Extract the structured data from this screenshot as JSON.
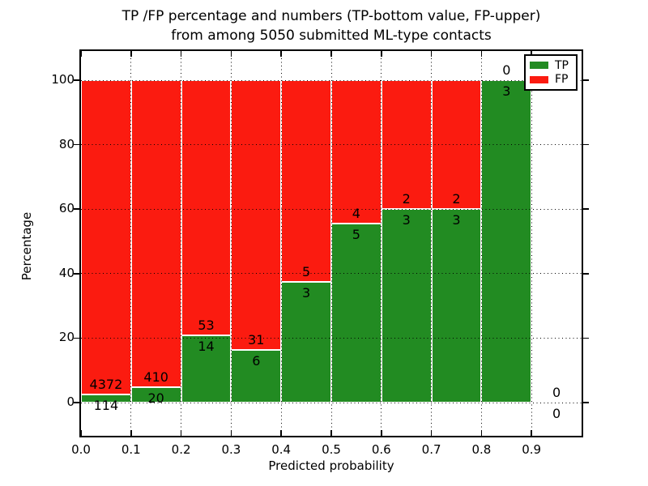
{
  "chart_data": {
    "type": "bar",
    "stacked": true,
    "title_line1": "TP /FP percentage and numbers (TP-bottom value, FP-upper)",
    "title_line2": "from among 5050 submitted ML-type contacts",
    "xlabel": "Predicted probability",
    "ylabel": "Percentage",
    "total_contacts": 5050,
    "bin_width": 0.1,
    "bin_starts": [
      0.0,
      0.1,
      0.2,
      0.3,
      0.4,
      0.5,
      0.6,
      0.7,
      0.8,
      0.9
    ],
    "series": [
      {
        "name": "TP",
        "color": "#228b22",
        "counts": [
          114,
          20,
          14,
          6,
          3,
          5,
          3,
          3,
          3,
          0
        ]
      },
      {
        "name": "FP",
        "color": "#fb1b10",
        "counts": [
          4372,
          410,
          53,
          31,
          5,
          4,
          2,
          2,
          0,
          0
        ]
      }
    ],
    "tp_percent": [
      2.54,
      4.65,
      20.9,
      16.22,
      37.5,
      55.56,
      60.0,
      60.0,
      100.0,
      0.0
    ],
    "xtick_labels": [
      "0.0",
      "0.1",
      "0.2",
      "0.3",
      "0.4",
      "0.5",
      "0.6",
      "0.7",
      "0.8",
      "0.9"
    ],
    "ytick_values": [
      0,
      20,
      40,
      60,
      80,
      100
    ],
    "xlim": [
      0.0,
      1.0
    ],
    "ylim": [
      -10.5,
      109.5
    ],
    "grid": "dotted, both axes, drawn above bars",
    "legend": {
      "position": "upper right",
      "entries": [
        {
          "label": "TP",
          "color": "#228b22"
        },
        {
          "label": "FP",
          "color": "#fb1b10"
        }
      ]
    }
  }
}
